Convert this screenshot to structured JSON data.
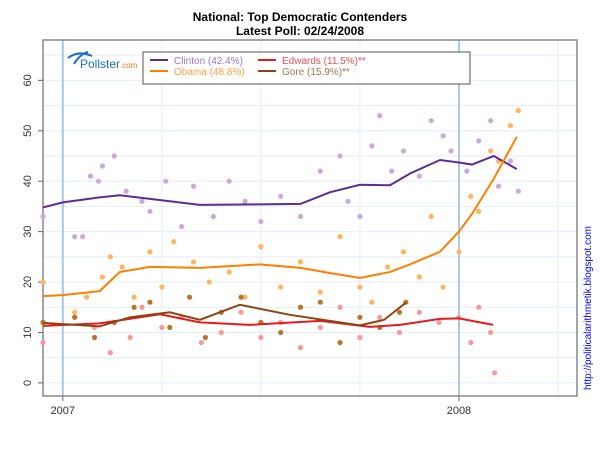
{
  "chart_data": {
    "type": "scatter",
    "title": "National: Top Democratic Contenders",
    "subtitle": "Latest Poll: 02/24/2008",
    "xlabel": "",
    "ylabel": "",
    "xlim": [
      2006.95,
      2008.298
    ],
    "ylim": [
      -2.6,
      68
    ],
    "x_ticks": [
      {
        "value": 2007,
        "label": "2007"
      },
      {
        "value": 2008,
        "label": "2008"
      }
    ],
    "y_ticks": [
      0,
      10,
      20,
      30,
      40,
      50,
      60
    ],
    "grid": true,
    "legend_placement": "top-left",
    "logo": "Pollster.com",
    "side_text": "http://politicalarithmetik.blogspot.com",
    "series": [
      {
        "name": "Clinton (42.4%)",
        "line_color": "#5c2d91",
        "point_color": "#c9aadb",
        "trend": [
          [
            2006.95,
            34.8
          ],
          [
            2007.0,
            35.8
          ],
          [
            2007.093,
            36.8
          ],
          [
            2007.144,
            37.2
          ],
          [
            2007.22,
            36.5
          ],
          [
            2007.346,
            35.3
          ],
          [
            2007.497,
            35.4
          ],
          [
            2007.6,
            35.5
          ],
          [
            2007.674,
            37.8
          ],
          [
            2007.75,
            39.3
          ],
          [
            2007.826,
            39.2
          ],
          [
            2007.876,
            41.5
          ],
          [
            2007.952,
            44.2
          ],
          [
            2008.0,
            43.7
          ],
          [
            2008.033,
            43.3
          ],
          [
            2008.088,
            45
          ],
          [
            2008.146,
            42.4
          ]
        ],
        "points": [
          [
            2006.95,
            33
          ],
          [
            2007.03,
            29
          ],
          [
            2007.05,
            29
          ],
          [
            2007.07,
            41
          ],
          [
            2007.09,
            40
          ],
          [
            2007.1,
            43
          ],
          [
            2007.13,
            45
          ],
          [
            2007.16,
            38
          ],
          [
            2007.2,
            36
          ],
          [
            2007.22,
            34
          ],
          [
            2007.26,
            40
          ],
          [
            2007.3,
            31
          ],
          [
            2007.33,
            39
          ],
          [
            2007.38,
            33
          ],
          [
            2007.42,
            40
          ],
          [
            2007.46,
            36
          ],
          [
            2007.5,
            32
          ],
          [
            2007.55,
            37
          ],
          [
            2007.6,
            33
          ],
          [
            2007.65,
            42
          ],
          [
            2007.7,
            45
          ],
          [
            2007.72,
            36
          ],
          [
            2007.75,
            33
          ],
          [
            2007.78,
            47
          ],
          [
            2007.8,
            53
          ],
          [
            2007.83,
            42
          ],
          [
            2007.86,
            46
          ],
          [
            2007.9,
            41
          ],
          [
            2007.93,
            52
          ],
          [
            2007.96,
            49
          ],
          [
            2007.98,
            46
          ],
          [
            2008.02,
            42
          ],
          [
            2008.05,
            48
          ],
          [
            2008.08,
            52
          ],
          [
            2008.1,
            39
          ],
          [
            2008.13,
            44
          ],
          [
            2008.15,
            38
          ]
        ]
      },
      {
        "name": "Obama (48.8%)",
        "line_color": "#ff7f00",
        "point_color": "#ffb45e",
        "trend": [
          [
            2006.95,
            17.2
          ],
          [
            2007.0,
            17.4
          ],
          [
            2007.093,
            18.2
          ],
          [
            2007.144,
            22
          ],
          [
            2007.22,
            23
          ],
          [
            2007.346,
            22.8
          ],
          [
            2007.497,
            23.5
          ],
          [
            2007.6,
            22.8
          ],
          [
            2007.674,
            21.8
          ],
          [
            2007.75,
            20.8
          ],
          [
            2007.826,
            22
          ],
          [
            2007.876,
            23.5
          ],
          [
            2007.952,
            26
          ],
          [
            2008.0,
            30
          ],
          [
            2008.033,
            33.5
          ],
          [
            2008.088,
            40.5
          ],
          [
            2008.146,
            48.8
          ]
        ],
        "points": [
          [
            2006.95,
            20
          ],
          [
            2007.03,
            14
          ],
          [
            2007.06,
            17
          ],
          [
            2007.1,
            21
          ],
          [
            2007.12,
            25
          ],
          [
            2007.15,
            23
          ],
          [
            2007.18,
            17
          ],
          [
            2007.22,
            26
          ],
          [
            2007.25,
            19
          ],
          [
            2007.28,
            28
          ],
          [
            2007.33,
            24
          ],
          [
            2007.37,
            20
          ],
          [
            2007.42,
            22
          ],
          [
            2007.46,
            17
          ],
          [
            2007.5,
            27
          ],
          [
            2007.55,
            19
          ],
          [
            2007.6,
            24
          ],
          [
            2007.65,
            18
          ],
          [
            2007.7,
            29
          ],
          [
            2007.75,
            19
          ],
          [
            2007.78,
            16
          ],
          [
            2007.82,
            23
          ],
          [
            2007.86,
            26
          ],
          [
            2007.9,
            21
          ],
          [
            2007.93,
            33
          ],
          [
            2007.96,
            19
          ],
          [
            2008.0,
            26
          ],
          [
            2008.03,
            37
          ],
          [
            2008.05,
            34
          ],
          [
            2008.08,
            46
          ],
          [
            2008.1,
            44
          ],
          [
            2008.13,
            51
          ],
          [
            2008.15,
            54
          ]
        ]
      },
      {
        "name": "Edwards (11.5%)**",
        "line_color": "#e41a1c",
        "point_color": "#f59a9a",
        "trend": [
          [
            2006.95,
            11.3
          ],
          [
            2007.093,
            11.8
          ],
          [
            2007.245,
            13.6
          ],
          [
            2007.346,
            12
          ],
          [
            2007.472,
            11.5
          ],
          [
            2007.65,
            12.3
          ],
          [
            2007.775,
            11.1
          ],
          [
            2007.851,
            11.5
          ],
          [
            2007.952,
            12.7
          ],
          [
            2008.0,
            12.8
          ],
          [
            2008.053,
            12
          ],
          [
            2008.086,
            11.5
          ]
        ],
        "points": [
          [
            2006.95,
            8
          ],
          [
            2007.03,
            13
          ],
          [
            2007.08,
            11
          ],
          [
            2007.12,
            6
          ],
          [
            2007.17,
            9
          ],
          [
            2007.2,
            15
          ],
          [
            2007.25,
            11
          ],
          [
            2007.3,
            13
          ],
          [
            2007.35,
            8
          ],
          [
            2007.4,
            10
          ],
          [
            2007.45,
            14
          ],
          [
            2007.5,
            9
          ],
          [
            2007.55,
            12
          ],
          [
            2007.6,
            7
          ],
          [
            2007.65,
            11
          ],
          [
            2007.7,
            15
          ],
          [
            2007.75,
            9
          ],
          [
            2007.8,
            13
          ],
          [
            2007.85,
            10
          ],
          [
            2007.9,
            14
          ],
          [
            2007.95,
            12
          ],
          [
            2008.0,
            13
          ],
          [
            2008.03,
            8
          ],
          [
            2008.05,
            15
          ],
          [
            2008.08,
            10
          ],
          [
            2008.09,
            2
          ]
        ]
      },
      {
        "name": "Gore (15.9%)**",
        "line_color": "#8b4513",
        "point_color": "#b8762b",
        "trend": [
          [
            2006.95,
            11.9
          ],
          [
            2007.093,
            11.2
          ],
          [
            2007.169,
            13
          ],
          [
            2007.27,
            14
          ],
          [
            2007.346,
            12.5
          ],
          [
            2007.447,
            15.5
          ],
          [
            2007.573,
            13.5
          ],
          [
            2007.674,
            12.3
          ],
          [
            2007.75,
            11.4
          ],
          [
            2007.811,
            12.5
          ],
          [
            2007.866,
            15.9
          ]
        ],
        "points": [
          [
            2006.95,
            12
          ],
          [
            2007.03,
            13
          ],
          [
            2007.08,
            9
          ],
          [
            2007.13,
            12
          ],
          [
            2007.18,
            15
          ],
          [
            2007.22,
            16
          ],
          [
            2007.27,
            11
          ],
          [
            2007.32,
            17
          ],
          [
            2007.36,
            9
          ],
          [
            2007.4,
            14
          ],
          [
            2007.45,
            17
          ],
          [
            2007.5,
            12
          ],
          [
            2007.55,
            10
          ],
          [
            2007.6,
            15
          ],
          [
            2007.65,
            16
          ],
          [
            2007.7,
            8
          ],
          [
            2007.75,
            13
          ],
          [
            2007.8,
            11
          ],
          [
            2007.85,
            14
          ],
          [
            2007.866,
            16
          ]
        ]
      }
    ]
  }
}
